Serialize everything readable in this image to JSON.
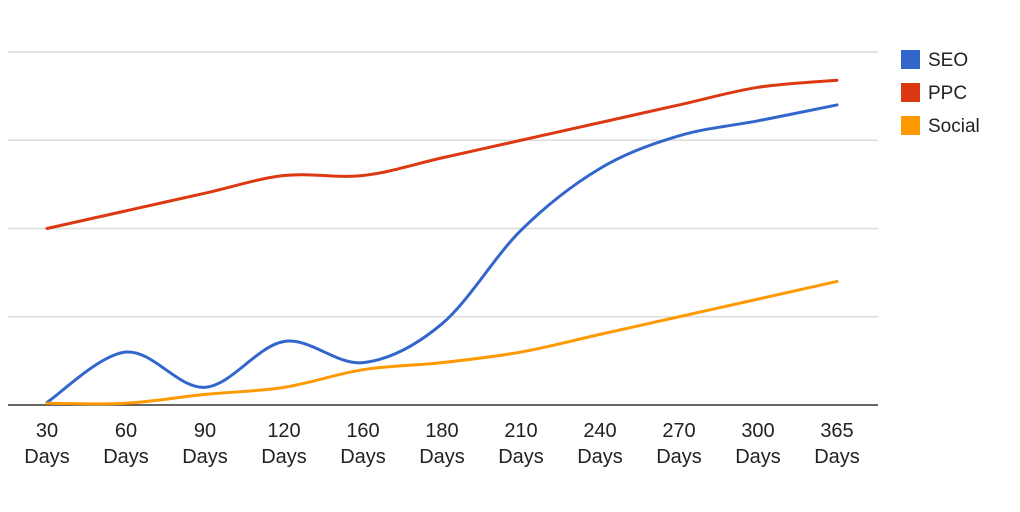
{
  "chart_data": {
    "type": "line",
    "title": "",
    "xlabel": "",
    "ylabel": "",
    "categories": [
      {
        "line1": "30",
        "line2": "Days"
      },
      {
        "line1": "60",
        "line2": "Days"
      },
      {
        "line1": "90",
        "line2": "Days"
      },
      {
        "line1": "120",
        "line2": "Days"
      },
      {
        "line1": "160",
        "line2": "Days"
      },
      {
        "line1": "180",
        "line2": "Days"
      },
      {
        "line1": "210",
        "line2": "Days"
      },
      {
        "line1": "240",
        "line2": "Days"
      },
      {
        "line1": "270",
        "line2": "Days"
      },
      {
        "line1": "300",
        "line2": "Days"
      },
      {
        "line1": "365",
        "line2": "Days"
      }
    ],
    "ylim": [
      0,
      400
    ],
    "grid": true,
    "legend_position": "right",
    "series": [
      {
        "name": "SEO",
        "color": "#3366cc",
        "values": [
          3,
          60,
          20,
          72,
          48,
          92,
          198,
          268,
          305,
          322,
          340
        ]
      },
      {
        "name": "PPC",
        "color": "#dc3912",
        "values": [
          200,
          220,
          240,
          260,
          260,
          280,
          300,
          320,
          340,
          360,
          368
        ]
      },
      {
        "name": "Social",
        "color": "#ff9900",
        "values": [
          2,
          2,
          12,
          20,
          40,
          48,
          60,
          80,
          100,
          120,
          140
        ]
      }
    ]
  }
}
